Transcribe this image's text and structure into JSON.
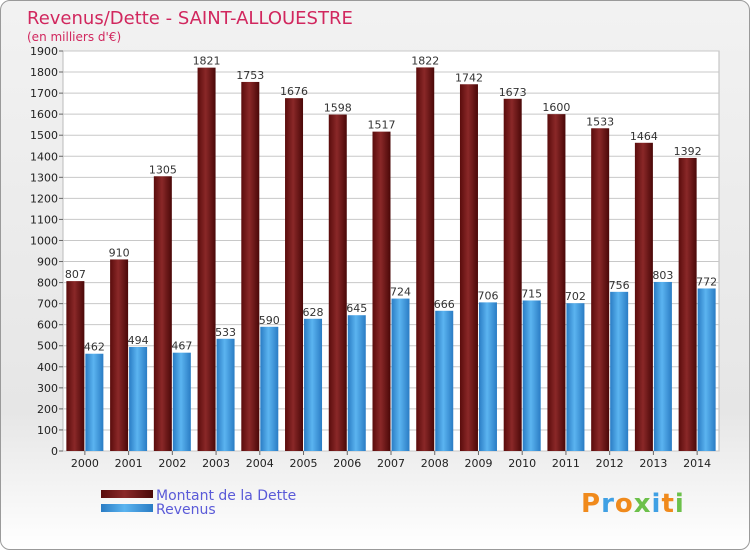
{
  "chart_data": {
    "type": "bar",
    "title": "Revenus/Dette - SAINT-ALLOUESTRE",
    "subtitle": "(en milliers d'€)",
    "categories": [
      "2000",
      "2001",
      "2002",
      "2003",
      "2004",
      "2005",
      "2006",
      "2007",
      "2008",
      "2009",
      "2010",
      "2011",
      "2012",
      "2013",
      "2014"
    ],
    "series": [
      {
        "name": "Montant de la Dette",
        "color": "#7a1a1a",
        "values": [
          807,
          910,
          1305,
          1821,
          1753,
          1676,
          1598,
          1517,
          1822,
          1742,
          1673,
          1600,
          1533,
          1464,
          1392
        ]
      },
      {
        "name": "Revenus",
        "color": "#3fa0e4",
        "values": [
          462,
          494,
          467,
          533,
          590,
          628,
          645,
          724,
          666,
          706,
          715,
          702,
          756,
          803,
          772
        ]
      }
    ],
    "ylim": [
      0,
      1900
    ],
    "yticks": [
      0,
      100,
      200,
      300,
      400,
      500,
      600,
      700,
      800,
      900,
      1000,
      1100,
      1200,
      1300,
      1400,
      1500,
      1600,
      1700,
      1800,
      1900
    ],
    "grid": true,
    "legend_position": "bottom-left"
  },
  "colors": {
    "title": "#d1275e",
    "legend_text": "#5a5ad8"
  },
  "logo": {
    "text": "Proxiti"
  }
}
